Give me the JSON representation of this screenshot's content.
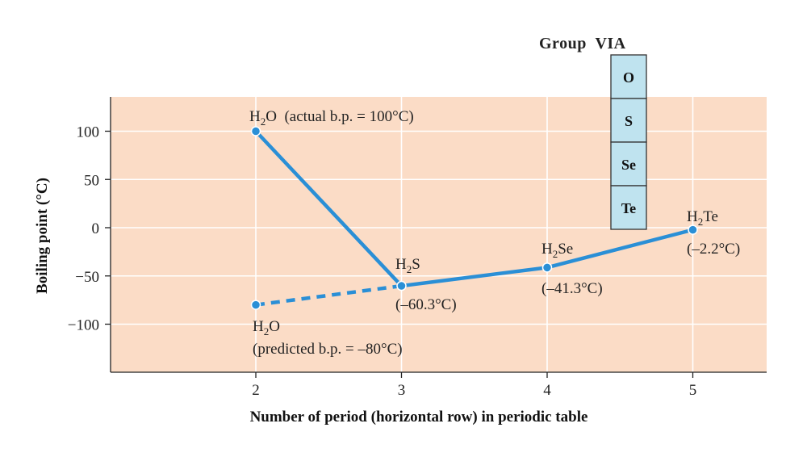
{
  "chart_data": {
    "type": "line",
    "title": "",
    "xlabel": "Number of period (horizontal row) in periodic table",
    "ylabel": "Boiling point (°C)",
    "xlim": [
      1,
      5.5
    ],
    "ylim": [
      -150,
      135
    ],
    "x_ticks": [
      2,
      3,
      4,
      5
    ],
    "y_ticks": [
      100,
      50,
      0,
      -50,
      -100
    ],
    "y_tick_labels": [
      "100",
      "50",
      "0",
      "−50",
      "−100"
    ],
    "grid": true,
    "series": [
      {
        "style": "solid",
        "points": [
          {
            "x": 2,
            "y": 100
          },
          {
            "x": 3,
            "y": -60.3
          },
          {
            "x": 4,
            "y": -41.3
          },
          {
            "x": 5,
            "y": -2.2
          }
        ]
      },
      {
        "style": "dashed",
        "points": [
          {
            "x": 2,
            "y": -80
          },
          {
            "x": 3,
            "y": -60.3
          }
        ]
      }
    ],
    "annotations": [
      {
        "x": 2,
        "y": 100,
        "lines": [
          {
            "formula": [
              "H",
              "2",
              "O"
            ],
            "text": "  (actual b.p. = 100°C)"
          }
        ]
      },
      {
        "x": 3,
        "y": -60.3,
        "lines": [
          {
            "formula": [
              "H",
              "2",
              "S"
            ],
            "text": ""
          },
          {
            "text": "(–60.3°C)"
          }
        ]
      },
      {
        "x": 4,
        "y": -41.3,
        "lines": [
          {
            "formula": [
              "H",
              "2",
              "Se"
            ],
            "text": ""
          },
          {
            "text": "(–41.3°C)"
          }
        ]
      },
      {
        "x": 5,
        "y": -2.2,
        "lines": [
          {
            "formula": [
              "H",
              "2",
              "Te"
            ],
            "text": ""
          },
          {
            "text": "(–2.2°C)"
          }
        ]
      },
      {
        "x": 2,
        "y": -80,
        "lines": [
          {
            "formula": [
              "H",
              "2",
              "O"
            ],
            "text": ""
          },
          {
            "text": "(predicted b.p. = –80°C)"
          }
        ]
      }
    ],
    "group_table": {
      "title": "Group  VIA",
      "elements": [
        "O",
        "S",
        "Se",
        "Te"
      ]
    },
    "colors": {
      "plot_bg": "#fbdcc6",
      "line": "#2a8fd6",
      "cell_bg": "#bfe3ef",
      "grid": "#ffffff"
    }
  }
}
